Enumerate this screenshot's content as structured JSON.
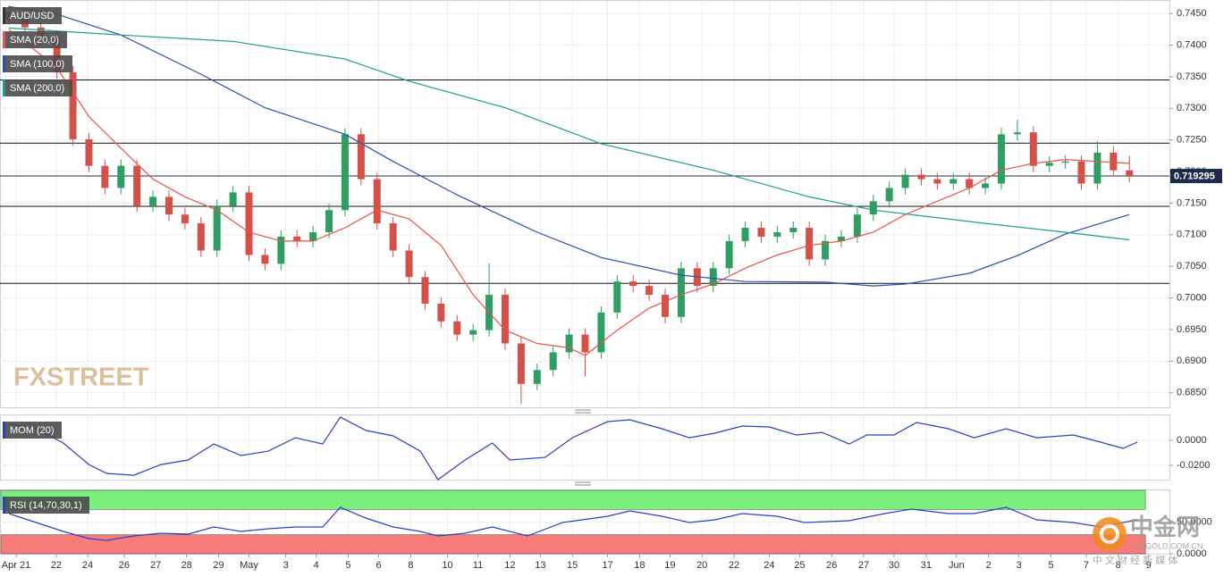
{
  "chart_data": [
    {
      "type": "candlestick",
      "title": "AUD/USD",
      "x": [
        0,
        1,
        2,
        3,
        4,
        5,
        6,
        7,
        8,
        9,
        10,
        11,
        12,
        13,
        14,
        15,
        16,
        17,
        18,
        19,
        20,
        21,
        22,
        23,
        24,
        25,
        26,
        27,
        28,
        29,
        30,
        31,
        32,
        33,
        34,
        35,
        36,
        37,
        38,
        39,
        40,
        41,
        42,
        43,
        44,
        45,
        46,
        47,
        48,
        49,
        50,
        51,
        52,
        53,
        54,
        55,
        56,
        57,
        58,
        59,
        60,
        61,
        62,
        63,
        64,
        65,
        66,
        67,
        68,
        69,
        70
      ],
      "open": [
        0.7452,
        0.7442,
        0.7428,
        0.7413,
        0.7357,
        0.7251,
        0.7209,
        0.7174,
        0.7209,
        0.7146,
        0.716,
        0.7132,
        0.7118,
        0.7075,
        0.7146,
        0.7167,
        0.7068,
        0.7054,
        0.7097,
        0.709,
        0.7104,
        0.7139,
        0.7259,
        0.7188,
        0.7118,
        0.7075,
        0.7033,
        0.6991,
        0.6963,
        0.6942,
        0.6949,
        0.7005,
        0.6928,
        0.6864,
        0.6886,
        0.6914,
        0.6942,
        0.6914,
        0.6977,
        0.7026,
        0.7019,
        0.7005,
        0.697,
        0.7047,
        0.7019,
        0.7047,
        0.709,
        0.7111,
        0.7097,
        0.7104,
        0.7111,
        0.7061,
        0.709,
        0.7097,
        0.7132,
        0.7153,
        0.7174,
        0.7195,
        0.7188,
        0.7181,
        0.7188,
        0.7174,
        0.7181,
        0.7259,
        0.7262,
        0.7209,
        0.7214,
        0.7216,
        0.7181,
        0.723,
        0.7202
      ],
      "high": [
        0.7462,
        0.7452,
        0.7438,
        0.7423,
        0.7367,
        0.7261,
        0.7219,
        0.7219,
        0.7219,
        0.717,
        0.717,
        0.7142,
        0.7128,
        0.7156,
        0.7177,
        0.7177,
        0.7078,
        0.7107,
        0.7107,
        0.7114,
        0.7149,
        0.7269,
        0.7269,
        0.7198,
        0.7128,
        0.7085,
        0.7043,
        0.7001,
        0.6973,
        0.6959,
        0.7055,
        0.7015,
        0.6938,
        0.6896,
        0.6924,
        0.6952,
        0.6952,
        0.6987,
        0.7036,
        0.7036,
        0.7029,
        0.7015,
        0.7057,
        0.7057,
        0.7057,
        0.71,
        0.7121,
        0.7121,
        0.7114,
        0.7121,
        0.7121,
        0.71,
        0.7107,
        0.7142,
        0.7163,
        0.7184,
        0.7205,
        0.7205,
        0.7198,
        0.7198,
        0.7198,
        0.7191,
        0.7269,
        0.7282,
        0.7272,
        0.7224,
        0.7226,
        0.7226,
        0.7248,
        0.724,
        0.7225
      ],
      "low": [
        0.7432,
        0.7418,
        0.7403,
        0.7347,
        0.7241,
        0.7199,
        0.7164,
        0.7164,
        0.7136,
        0.7136,
        0.7122,
        0.7108,
        0.7065,
        0.7065,
        0.7136,
        0.7058,
        0.7044,
        0.7044,
        0.708,
        0.708,
        0.7094,
        0.7129,
        0.7178,
        0.7108,
        0.7065,
        0.7023,
        0.6981,
        0.6953,
        0.6932,
        0.6932,
        0.6939,
        0.6918,
        0.6832,
        0.6854,
        0.6876,
        0.6904,
        0.6876,
        0.6904,
        0.6967,
        0.7009,
        0.6995,
        0.696,
        0.696,
        0.7009,
        0.7009,
        0.7037,
        0.708,
        0.7087,
        0.7087,
        0.7094,
        0.7051,
        0.7051,
        0.708,
        0.7087,
        0.7122,
        0.7143,
        0.7164,
        0.7178,
        0.7171,
        0.7171,
        0.7164,
        0.7164,
        0.7171,
        0.7249,
        0.7199,
        0.7199,
        0.7204,
        0.7171,
        0.7171,
        0.7192,
        0.7183
      ],
      "close": [
        0.7442,
        0.7428,
        0.7413,
        0.7357,
        0.7251,
        0.7209,
        0.7174,
        0.7209,
        0.7146,
        0.716,
        0.7132,
        0.7118,
        0.7075,
        0.7146,
        0.7167,
        0.7068,
        0.7054,
        0.7097,
        0.709,
        0.7104,
        0.7139,
        0.7259,
        0.7188,
        0.7118,
        0.7075,
        0.7033,
        0.6991,
        0.6963,
        0.6942,
        0.6949,
        0.7005,
        0.6928,
        0.6864,
        0.6886,
        0.6914,
        0.6942,
        0.6914,
        0.6977,
        0.7026,
        0.7019,
        0.7005,
        0.697,
        0.7047,
        0.7019,
        0.7047,
        0.709,
        0.7111,
        0.7097,
        0.7104,
        0.7111,
        0.7061,
        0.709,
        0.7097,
        0.7132,
        0.7153,
        0.7174,
        0.7195,
        0.7188,
        0.7181,
        0.7188,
        0.7174,
        0.7181,
        0.7259,
        0.7262,
        0.7209,
        0.7214,
        0.7216,
        0.7181,
        0.723,
        0.7202,
        0.7193
      ],
      "up_color": "#2e9e63",
      "down_color": "#d6504a",
      "series": [
        {
          "name": "SMA (20,0)",
          "color": "#e8544a",
          "x": [
            0,
            3,
            5,
            7,
            9,
            11,
            13,
            15,
            17,
            19,
            21,
            23,
            25,
            27,
            29,
            31,
            33,
            35,
            36,
            38,
            40,
            42,
            44,
            46,
            48,
            50,
            52,
            54,
            56,
            58,
            60,
            62,
            64,
            66,
            68,
            70
          ],
          "values": [
            0.7425,
            0.7364,
            0.7287,
            0.7237,
            0.7188,
            0.716,
            0.7139,
            0.7104,
            0.709,
            0.709,
            0.7111,
            0.7139,
            0.7125,
            0.7083,
            0.7005,
            0.6949,
            0.6928,
            0.6921,
            0.6909,
            0.6949,
            0.6984,
            0.7005,
            0.7022,
            0.7047,
            0.7068,
            0.7083,
            0.709,
            0.7104,
            0.7132,
            0.7153,
            0.7174,
            0.7202,
            0.7213,
            0.7219,
            0.7216,
            0.7213
          ]
        },
        {
          "name": "SMA (100,0)",
          "color": "#2a50b6",
          "x": [
            0,
            3,
            7,
            12,
            16,
            21,
            24,
            28,
            33,
            37,
            42,
            46,
            51,
            54,
            56,
            60,
            63,
            66,
            70
          ],
          "values": [
            0.7461,
            0.7449,
            0.7416,
            0.7354,
            0.7301,
            0.7259,
            0.7216,
            0.7163,
            0.7104,
            0.7064,
            0.7036,
            0.7026,
            0.7025,
            0.7019,
            0.7022,
            0.7039,
            0.7067,
            0.7101,
            0.7132
          ]
        },
        {
          "name": "SMA (200,0)",
          "color": "#1e9f8c",
          "x": [
            0,
            7,
            14,
            21,
            25,
            31,
            37,
            44,
            50,
            54,
            61,
            66,
            70
          ],
          "values": [
            0.7427,
            0.7416,
            0.7406,
            0.7378,
            0.7343,
            0.7301,
            0.7244,
            0.7202,
            0.716,
            0.7139,
            0.7118,
            0.7104,
            0.7092
          ]
        }
      ],
      "levels": [
        0.7345,
        0.7245,
        0.7145,
        0.7023
      ],
      "level_color": "#111111",
      "last_price": 0.719295,
      "last_price_color": "#1c2b4b",
      "xlim": [
        -0.5,
        72.5
      ],
      "ylim": [
        0.6827,
        0.747
      ],
      "yticks": [
        {
          "value": 0.745,
          "label": "0.7450"
        },
        {
          "value": 0.74,
          "label": "0.7400"
        },
        {
          "value": 0.735,
          "label": "0.7350"
        },
        {
          "value": 0.73,
          "label": "0.7300"
        },
        {
          "value": 0.725,
          "label": "0.7250"
        },
        {
          "value": 0.72,
          "label": "0.7200"
        },
        {
          "value": 0.715,
          "label": "0.7150"
        },
        {
          "value": 0.71,
          "label": "0.7100"
        },
        {
          "value": 0.705,
          "label": "0.7050"
        },
        {
          "value": 0.7,
          "label": "0.7000"
        },
        {
          "value": 0.695,
          "label": "0.6950"
        },
        {
          "value": 0.69,
          "label": "0.6900"
        },
        {
          "value": 0.685,
          "label": "0.6850"
        }
      ],
      "xticks": [
        {
          "value": 0.45,
          "label": "Apr 21"
        },
        {
          "value": 2.96,
          "label": "22"
        },
        {
          "value": 4.92,
          "label": "24"
        },
        {
          "value": 7.2,
          "label": "26"
        },
        {
          "value": 9.17,
          "label": "27"
        },
        {
          "value": 11.1,
          "label": "28"
        },
        {
          "value": 13.1,
          "label": "29"
        },
        {
          "value": 15.0,
          "label": "May"
        },
        {
          "value": 17.3,
          "label": "3"
        },
        {
          "value": 19.2,
          "label": "4"
        },
        {
          "value": 21.2,
          "label": "5"
        },
        {
          "value": 23.1,
          "label": "6"
        },
        {
          "value": 25.1,
          "label": "8"
        },
        {
          "value": 27.4,
          "label": "10"
        },
        {
          "value": 29.3,
          "label": "11"
        },
        {
          "value": 31.3,
          "label": "12"
        },
        {
          "value": 33.2,
          "label": "13"
        },
        {
          "value": 35.2,
          "label": "15"
        },
        {
          "value": 37.4,
          "label": "17"
        },
        {
          "value": 39.4,
          "label": "18"
        },
        {
          "value": 41.3,
          "label": "19"
        },
        {
          "value": 43.3,
          "label": "20"
        },
        {
          "value": 45.3,
          "label": "22"
        },
        {
          "value": 47.5,
          "label": "24"
        },
        {
          "value": 49.4,
          "label": "25"
        },
        {
          "value": 51.4,
          "label": "26"
        },
        {
          "value": 53.4,
          "label": "27"
        },
        {
          "value": 55.3,
          "label": "30"
        },
        {
          "value": 57.3,
          "label": "31"
        },
        {
          "value": 59.2,
          "label": "Jun"
        },
        {
          "value": 61.2,
          "label": "2"
        },
        {
          "value": 63.1,
          "label": "3"
        },
        {
          "value": 65.1,
          "label": "5"
        },
        {
          "value": 67.3,
          "label": "7"
        },
        {
          "value": 69.3,
          "label": "8"
        },
        {
          "value": 71.2,
          "label": "9"
        }
      ]
    },
    {
      "type": "line",
      "series": [
        {
          "name": "MOM (20)",
          "color": "#2b3fc9",
          "x": [
            0,
            1.7,
            3.4,
            5,
            6.1,
            7.8,
            9.5,
            11.2,
            12.8,
            14.5,
            16.2,
            17.9,
            19.6,
            20.7,
            22.3,
            24,
            25.7,
            26.8,
            28.5,
            30.2,
            31.3,
            33.5,
            35.2,
            37.4,
            38.8,
            40.8,
            42.5,
            44.1,
            45.8,
            47.5,
            49.2,
            50.8,
            52.5,
            53.6,
            55.3,
            56.7,
            58.7,
            60.3,
            62.3,
            64.2,
            66.5,
            68.2,
            69.6,
            70.5
          ],
          "values": [
            0.0129,
            0.0093,
            -0.0021,
            -0.0193,
            -0.0264,
            -0.0279,
            -0.0193,
            -0.0157,
            -0.0029,
            -0.0121,
            -0.0086,
            0.0021,
            -0.0029,
            0.0186,
            0.0079,
            0.0036,
            -0.0086,
            -0.0314,
            -0.0157,
            -0.0021,
            -0.0157,
            -0.0136,
            0.0021,
            0.015,
            0.0164,
            0.0093,
            0.0021,
            0.0057,
            0.0114,
            0.0107,
            0.0043,
            0.0064,
            -0.0029,
            0.0043,
            0.0043,
            0.0143,
            0.0093,
            0.0021,
            0.0093,
            0.0021,
            0.0043,
            -0.0014,
            -0.0064,
            -0.0014
          ]
        }
      ],
      "xlim": [
        -0.5,
        72.5
      ],
      "ylim": [
        -0.0314,
        0.02
      ],
      "yticks": [
        {
          "value": 0,
          "label": "0.0000"
        },
        {
          "value": -0.02,
          "label": "-0.0200"
        }
      ]
    },
    {
      "type": "line",
      "series": [
        {
          "name": "RSI (14,70,30,1)",
          "color": "#2b3fc9",
          "x": [
            0,
            1.7,
            3.4,
            5,
            6.1,
            7.8,
            9.5,
            11.2,
            12.8,
            14.5,
            16.2,
            17.9,
            19.6,
            20.7,
            22.3,
            24,
            25.7,
            26.8,
            28.5,
            30.2,
            32.4,
            34.6,
            37.4,
            38.8,
            40.8,
            42.5,
            44.1,
            45.8,
            48,
            49.7,
            52.5,
            54.7,
            56.4,
            58.7,
            60.3,
            62.3,
            64.2,
            66.5,
            68.2,
            69.6,
            70.5
          ],
          "values": [
            63.4,
            49.3,
            35.2,
            23.9,
            21.1,
            28.2,
            32.4,
            31.0,
            42.3,
            35.2,
            39.4,
            42.3,
            42.3,
            73.2,
            56.3,
            42.3,
            35.2,
            28.2,
            32.4,
            42.3,
            28.2,
            49.3,
            59.2,
            67.6,
            59.2,
            49.3,
            53.5,
            63.4,
            59.2,
            49.3,
            52.1,
            63.4,
            70.4,
            63.4,
            63.4,
            73.2,
            53.5,
            49.3,
            42.3,
            49.3,
            53.5
          ]
        }
      ],
      "bands": [
        {
          "from": 70,
          "to": 100,
          "color": "#7cf07c"
        },
        {
          "from": 0,
          "to": 30,
          "color": "#f77b78"
        }
      ],
      "xlim": [
        -0.5,
        72.5
      ],
      "ylim": [
        0,
        100
      ],
      "yticks": [
        {
          "value": 50,
          "label": "50.0000"
        },
        {
          "value": 0,
          "label": "0.0000"
        }
      ]
    }
  ],
  "watermarks": {
    "brand": "FXSTREET",
    "site": "中金网",
    "domain": "CNGOLD.COM.CN",
    "tagline": "中 文 财 经 新 媒 体"
  }
}
